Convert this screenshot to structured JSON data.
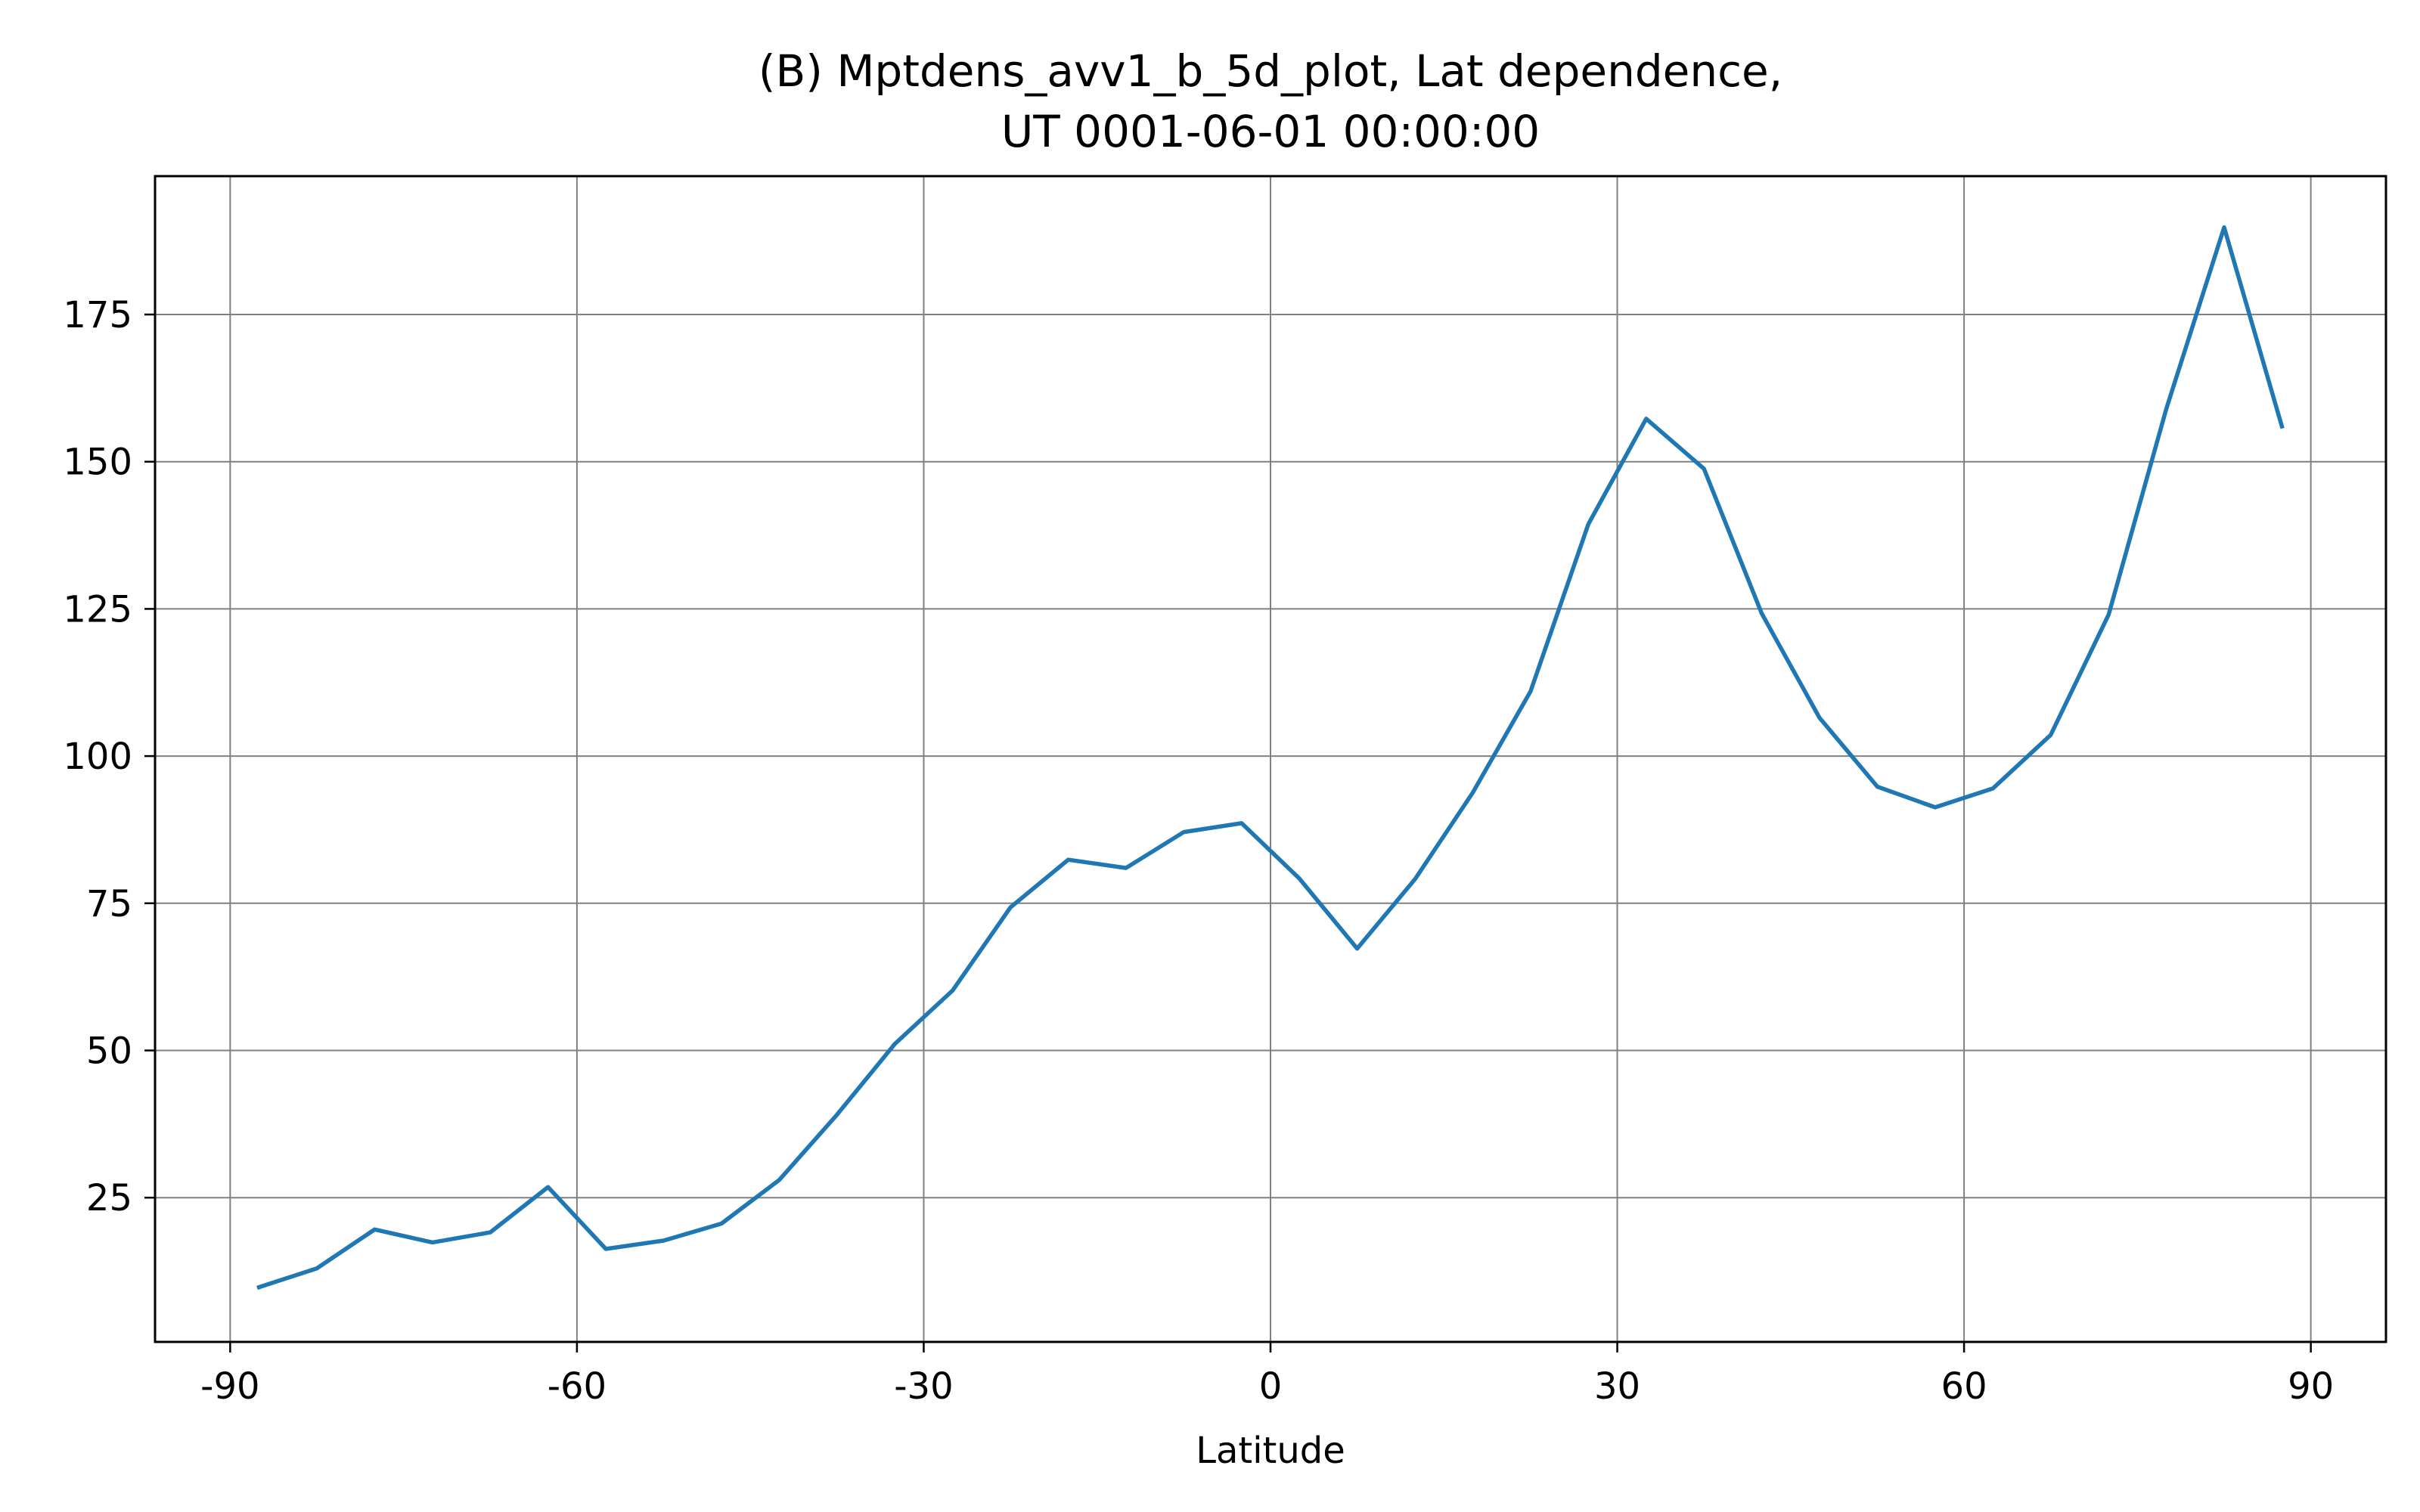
{
  "chart_data": {
    "type": "line",
    "title": "(B) Mptdens_avv1_b_5d_plot, Lat dependence,",
    "subtitle": "UT 0001-06-01 00:00:00",
    "xlabel": "Latitude",
    "ylabel": "",
    "xlim": [
      -96.5,
      96.5
    ],
    "ylim": [
      0.5,
      198.5
    ],
    "xticks": [
      -90,
      -60,
      -30,
      0,
      30,
      60,
      90
    ],
    "xtick_labels": [
      "-90",
      "-60",
      "-30",
      "0",
      "30",
      "60",
      "90"
    ],
    "yticks": [
      25,
      50,
      75,
      100,
      125,
      150,
      175
    ],
    "ytick_labels": [
      "25",
      "50",
      "75",
      "100",
      "125",
      "150",
      "175"
    ],
    "grid": true,
    "line_color": "#1f77b4",
    "series": [
      {
        "x": [
          -87.5,
          -82.5,
          -77.5,
          -72.5,
          -67.5,
          -62.5,
          -57.5,
          -52.5,
          -47.5,
          -42.5,
          -37.5,
          -32.5,
          -27.5,
          -22.5,
          -17.5,
          -12.5,
          -7.5,
          -2.5,
          2.5,
          7.5,
          12.5,
          17.5,
          22.5,
          27.5,
          32.5,
          37.5,
          42.5,
          47.5,
          52.5,
          57.5,
          62.5,
          67.5,
          72.5,
          77.5,
          82.5,
          87.5
        ],
        "values": [
          9.8,
          13.0,
          19.6,
          17.4,
          19.1,
          26.8,
          16.3,
          17.7,
          20.6,
          28.0,
          39.1,
          51.1,
          60.2,
          74.3,
          82.4,
          81.0,
          87.1,
          88.6,
          79.2,
          67.3,
          79.1,
          93.8,
          111.0,
          139.4,
          157.3,
          148.8,
          124.2,
          106.5,
          94.8,
          91.3,
          94.5,
          103.6,
          124.0,
          159.0,
          189.8,
          156.0
        ]
      }
    ]
  }
}
